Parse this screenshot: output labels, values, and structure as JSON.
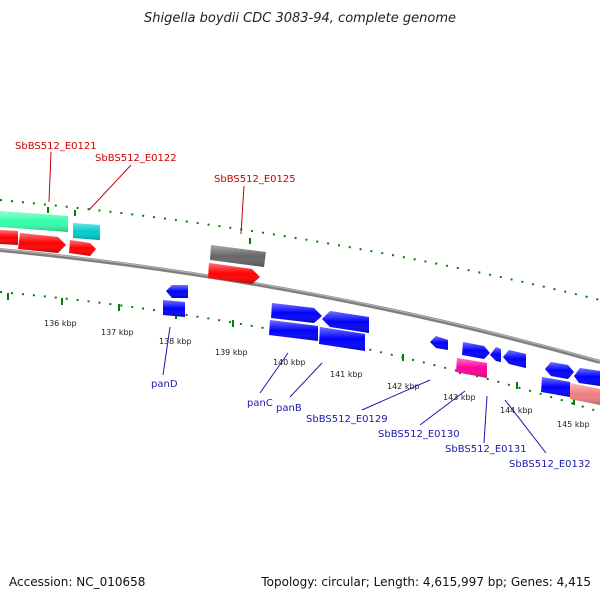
{
  "title": "Shigella boydii CDC 3083-94, complete genome",
  "footer": {
    "accession": "Accession: NC_010658",
    "summary": "Topology: circular; Length: 4,615,997 bp; Genes: 4,415"
  },
  "colors": {
    "backbone": "#808080",
    "tick": "#008000",
    "red_label": "#cc0000",
    "blue_label": "#1a1aaa",
    "teal_feature": "#33ffaa",
    "cyan_feature": "#00cccc",
    "red_feature": "#ff0000",
    "gray_feature": "#666666",
    "blue_feature": "#0000ff",
    "magenta_feature": "#ff0099",
    "salmon_feature": "#f08080"
  },
  "ticks": [
    "136 kbp",
    "137 kbp",
    "138 kbp",
    "139 kbp",
    "140 kbp",
    "141 kbp",
    "142 kbp",
    "143 kbp",
    "144 kbp",
    "145 kbp"
  ],
  "top_labels": [
    "SbBS512_E0121",
    "SbBS512_E0122",
    "SbBS512_E0125"
  ],
  "bottom_labels": [
    "panD",
    "panC",
    "panB",
    "SbBS512_E0129",
    "SbBS512_E0130",
    "SbBS512_E0131",
    "SbBS512_E0132"
  ]
}
